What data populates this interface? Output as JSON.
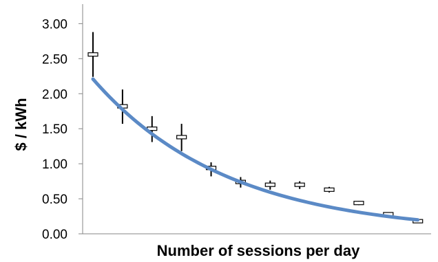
{
  "chart_data": {
    "type": "scatter",
    "title": "",
    "xlabel": "Number of sessions per day",
    "ylabel": "$ / kWh",
    "ylim": [
      0,
      3
    ],
    "yticks": [
      "0.00",
      "0.50",
      "1.00",
      "1.50",
      "2.00",
      "2.50",
      "3.00"
    ],
    "grid": false,
    "x_tick_labels_shown": false,
    "series": [
      {
        "type": "scatter_with_error_bars",
        "x": [
          1,
          2,
          3,
          4,
          5,
          6,
          7,
          8,
          9,
          10,
          11,
          12
        ],
        "y": [
          2.56,
          1.82,
          1.5,
          1.38,
          0.94,
          0.74,
          0.7,
          0.7,
          0.63,
          0.44,
          0.28,
          0.18
        ],
        "err_low": [
          2.24,
          1.57,
          1.31,
          1.18,
          0.82,
          0.66,
          0.63,
          0.64,
          0.59,
          0.41,
          0.27,
          0.16
        ],
        "err_high": [
          2.88,
          2.06,
          1.68,
          1.57,
          1.02,
          0.81,
          0.76,
          0.75,
          0.67,
          0.47,
          0.3,
          0.2
        ],
        "marker_color": "#000000"
      },
      {
        "type": "trendline",
        "fit": "exponential",
        "x_start": 1,
        "x_end": 12,
        "a": 2.75,
        "b": 0.219,
        "color": "#5b8ac6"
      }
    ]
  }
}
